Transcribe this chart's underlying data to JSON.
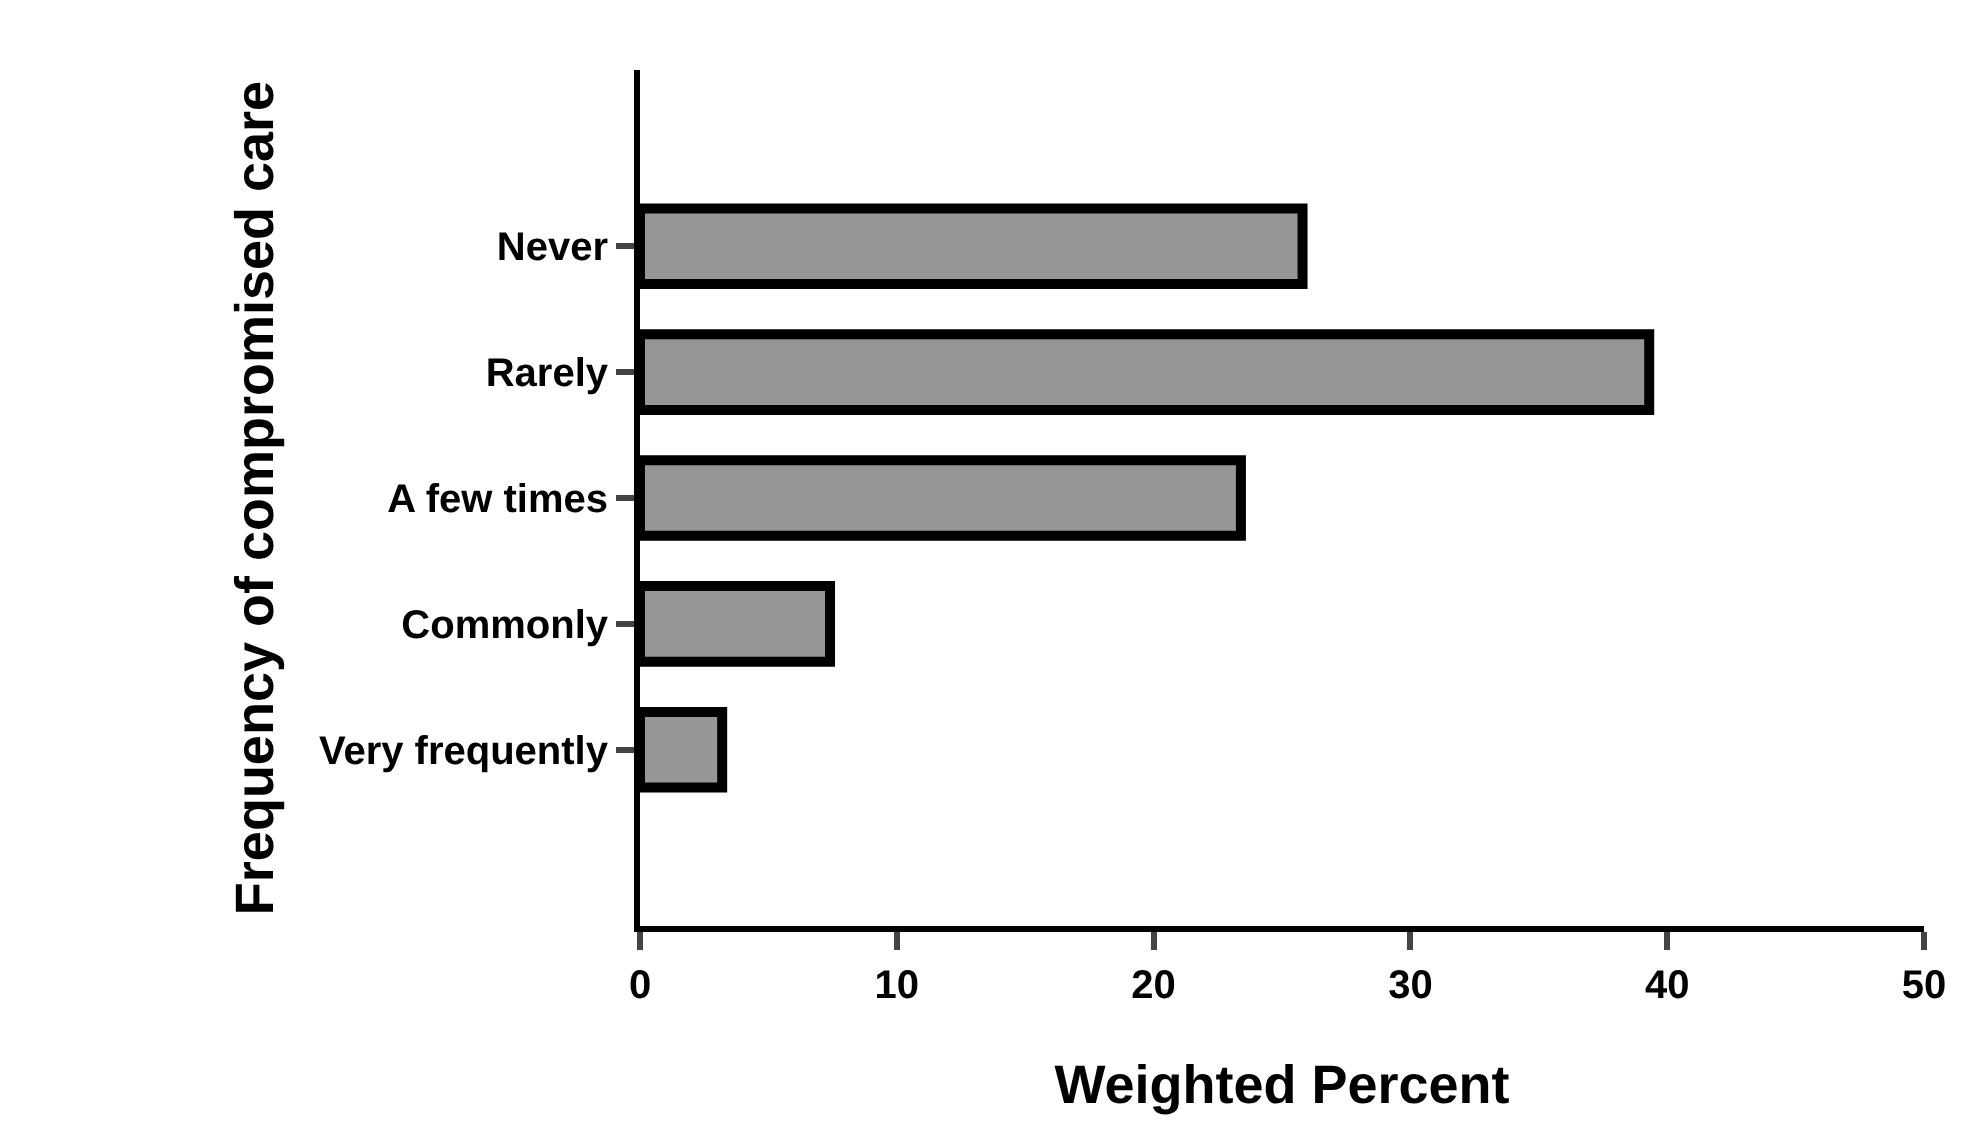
{
  "chart_data": {
    "type": "bar",
    "orientation": "horizontal",
    "xlabel": "Weighted Percent",
    "ylabel": "Frequency of compromised care",
    "categories": [
      "Never",
      "Rarely",
      "A few times",
      "Commonly",
      "Very frequently"
    ],
    "values": [
      25.8,
      39.3,
      23.4,
      7.4,
      3.2
    ],
    "color": "#969696",
    "xlim": [
      0,
      50
    ],
    "xticks": [
      0,
      10,
      20,
      30,
      40,
      50
    ]
  }
}
